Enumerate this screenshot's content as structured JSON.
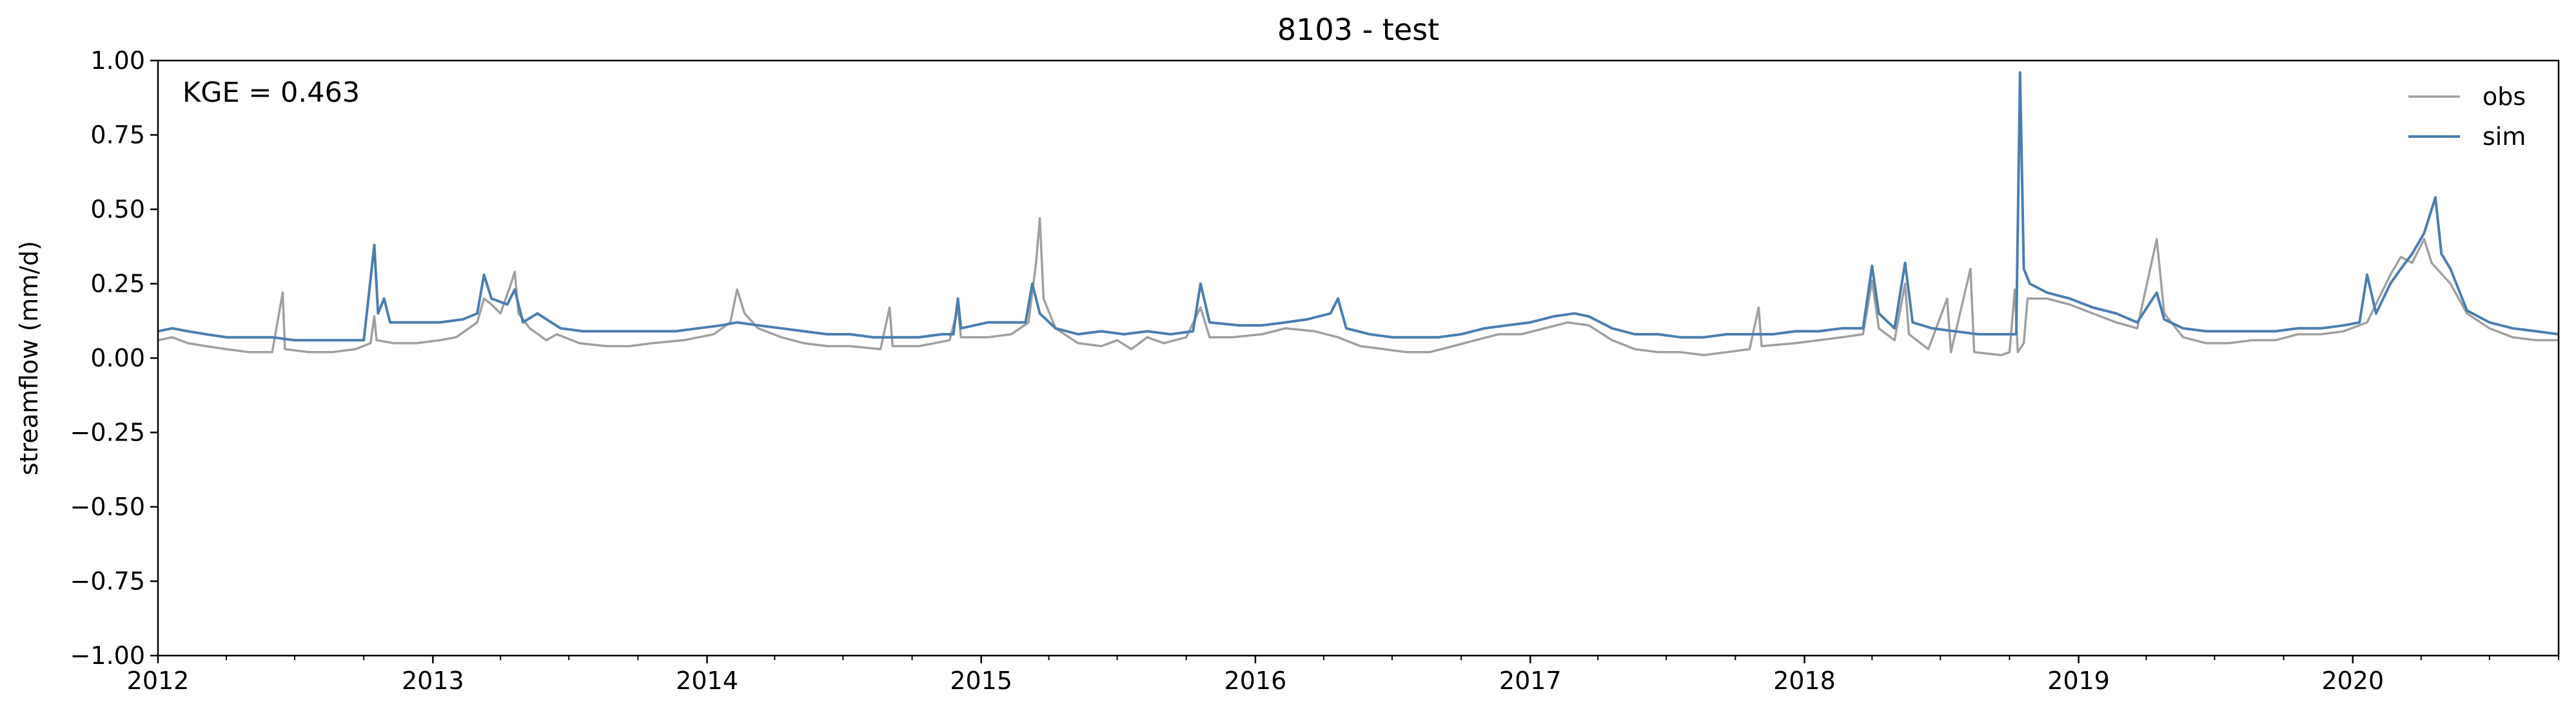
{
  "chart_data": {
    "type": "line",
    "title": "8103 - test",
    "xlabel": "",
    "ylabel": "streamflow (mm/d)",
    "ylim": [
      -1.0,
      1.0
    ],
    "xlim": [
      "2012-01-01",
      "2020-10-01"
    ],
    "x_tick_labels": [
      "2012",
      "2013",
      "2014",
      "2015",
      "2016",
      "2017",
      "2018",
      "2019",
      "2020"
    ],
    "y_ticks": [
      -1.0,
      -0.75,
      -0.5,
      -0.25,
      0.0,
      0.25,
      0.5,
      0.75,
      1.0
    ],
    "y_tick_labels": [
      "−1.00",
      "−0.75",
      "−0.50",
      "−0.25",
      "0.00",
      "0.25",
      "0.50",
      "0.75",
      "1.00"
    ],
    "annotation": "KGE = 0.463",
    "legend_position": "top-right",
    "grid": false,
    "colors": {
      "obs": "#a0a0a0",
      "sim": "#4a7eb0"
    },
    "series": [
      {
        "name": "obs",
        "points": [
          [
            "2012-01-01",
            0.06
          ],
          [
            "2012-01-20",
            0.07
          ],
          [
            "2012-02-10",
            0.05
          ],
          [
            "2012-03-05",
            0.04
          ],
          [
            "2012-04-01",
            0.03
          ],
          [
            "2012-05-01",
            0.02
          ],
          [
            "2012-06-01",
            0.02
          ],
          [
            "2012-06-15",
            0.22
          ],
          [
            "2012-06-18",
            0.03
          ],
          [
            "2012-07-20",
            0.02
          ],
          [
            "2012-08-20",
            0.02
          ],
          [
            "2012-09-20",
            0.03
          ],
          [
            "2012-10-10",
            0.05
          ],
          [
            "2012-10-15",
            0.14
          ],
          [
            "2012-10-18",
            0.06
          ],
          [
            "2012-11-10",
            0.05
          ],
          [
            "2012-12-10",
            0.05
          ],
          [
            "2013-01-10",
            0.06
          ],
          [
            "2013-02-01",
            0.07
          ],
          [
            "2013-03-01",
            0.12
          ],
          [
            "2013-03-10",
            0.2
          ],
          [
            "2013-03-20",
            0.18
          ],
          [
            "2013-04-01",
            0.15
          ],
          [
            "2013-04-15",
            0.25
          ],
          [
            "2013-04-20",
            0.29
          ],
          [
            "2013-04-25",
            0.15
          ],
          [
            "2013-05-10",
            0.1
          ],
          [
            "2013-06-01",
            0.06
          ],
          [
            "2013-06-15",
            0.08
          ],
          [
            "2013-07-15",
            0.05
          ],
          [
            "2013-08-20",
            0.04
          ],
          [
            "2013-09-20",
            0.04
          ],
          [
            "2013-10-20",
            0.05
          ],
          [
            "2013-12-01",
            0.06
          ],
          [
            "2014-01-10",
            0.08
          ],
          [
            "2014-02-01",
            0.12
          ],
          [
            "2014-02-10",
            0.23
          ],
          [
            "2014-02-20",
            0.15
          ],
          [
            "2014-03-10",
            0.1
          ],
          [
            "2014-04-10",
            0.07
          ],
          [
            "2014-05-10",
            0.05
          ],
          [
            "2014-06-10",
            0.04
          ],
          [
            "2014-07-10",
            0.04
          ],
          [
            "2014-08-20",
            0.03
          ],
          [
            "2014-09-01",
            0.17
          ],
          [
            "2014-09-05",
            0.04
          ],
          [
            "2014-10-10",
            0.04
          ],
          [
            "2014-11-20",
            0.06
          ],
          [
            "2014-12-01",
            0.17
          ],
          [
            "2014-12-05",
            0.07
          ],
          [
            "2015-01-10",
            0.07
          ],
          [
            "2015-02-10",
            0.08
          ],
          [
            "2015-03-05",
            0.12
          ],
          [
            "2015-03-15",
            0.32
          ],
          [
            "2015-03-20",
            0.47
          ],
          [
            "2015-03-25",
            0.2
          ],
          [
            "2015-04-10",
            0.1
          ],
          [
            "2015-05-10",
            0.05
          ],
          [
            "2015-06-10",
            0.04
          ],
          [
            "2015-07-01",
            0.06
          ],
          [
            "2015-07-20",
            0.03
          ],
          [
            "2015-08-10",
            0.07
          ],
          [
            "2015-09-01",
            0.05
          ],
          [
            "2015-10-01",
            0.07
          ],
          [
            "2015-10-20",
            0.17
          ],
          [
            "2015-11-01",
            0.07
          ],
          [
            "2015-12-01",
            0.07
          ],
          [
            "2016-01-10",
            0.08
          ],
          [
            "2016-02-10",
            0.1
          ],
          [
            "2016-03-20",
            0.09
          ],
          [
            "2016-04-20",
            0.07
          ],
          [
            "2016-05-20",
            0.04
          ],
          [
            "2016-06-20",
            0.03
          ],
          [
            "2016-07-20",
            0.02
          ],
          [
            "2016-08-20",
            0.02
          ],
          [
            "2016-09-20",
            0.04
          ],
          [
            "2016-10-20",
            0.06
          ],
          [
            "2016-11-20",
            0.08
          ],
          [
            "2016-12-20",
            0.08
          ],
          [
            "2017-01-20",
            0.1
          ],
          [
            "2017-02-20",
            0.12
          ],
          [
            "2017-03-20",
            0.11
          ],
          [
            "2017-04-20",
            0.06
          ],
          [
            "2017-05-20",
            0.03
          ],
          [
            "2017-06-20",
            0.02
          ],
          [
            "2017-07-20",
            0.02
          ],
          [
            "2017-08-20",
            0.01
          ],
          [
            "2017-09-20",
            0.02
          ],
          [
            "2017-10-20",
            0.03
          ],
          [
            "2017-11-01",
            0.17
          ],
          [
            "2017-11-05",
            0.04
          ],
          [
            "2017-12-20",
            0.05
          ],
          [
            "2018-01-20",
            0.06
          ],
          [
            "2018-02-20",
            0.07
          ],
          [
            "2018-03-20",
            0.08
          ],
          [
            "2018-04-01",
            0.26
          ],
          [
            "2018-04-10",
            0.1
          ],
          [
            "2018-05-01",
            0.06
          ],
          [
            "2018-05-15",
            0.25
          ],
          [
            "2018-05-20",
            0.08
          ],
          [
            "2018-06-15",
            0.03
          ],
          [
            "2018-07-10",
            0.2
          ],
          [
            "2018-07-15",
            0.02
          ],
          [
            "2018-08-10",
            0.3
          ],
          [
            "2018-08-15",
            0.02
          ],
          [
            "2018-09-20",
            0.01
          ],
          [
            "2018-10-01",
            0.02
          ],
          [
            "2018-10-08",
            0.23
          ],
          [
            "2018-10-12",
            0.02
          ],
          [
            "2018-10-20",
            0.05
          ],
          [
            "2018-10-25",
            0.2
          ],
          [
            "2018-11-20",
            0.2
          ],
          [
            "2018-12-20",
            0.18
          ],
          [
            "2019-01-20",
            0.15
          ],
          [
            "2019-02-20",
            0.12
          ],
          [
            "2019-03-20",
            0.1
          ],
          [
            "2019-04-15",
            0.4
          ],
          [
            "2019-04-25",
            0.15
          ],
          [
            "2019-05-20",
            0.07
          ],
          [
            "2019-06-20",
            0.05
          ],
          [
            "2019-07-20",
            0.05
          ],
          [
            "2019-08-20",
            0.06
          ],
          [
            "2019-09-20",
            0.06
          ],
          [
            "2019-10-20",
            0.08
          ],
          [
            "2019-11-20",
            0.08
          ],
          [
            "2019-12-20",
            0.09
          ],
          [
            "2020-01-20",
            0.12
          ],
          [
            "2020-02-20",
            0.28
          ],
          [
            "2020-03-05",
            0.34
          ],
          [
            "2020-03-20",
            0.32
          ],
          [
            "2020-04-05",
            0.4
          ],
          [
            "2020-04-15",
            0.32
          ],
          [
            "2020-05-10",
            0.25
          ],
          [
            "2020-06-01",
            0.15
          ],
          [
            "2020-07-01",
            0.1
          ],
          [
            "2020-08-01",
            0.07
          ],
          [
            "2020-09-01",
            0.06
          ],
          [
            "2020-10-01",
            0.06
          ]
        ]
      },
      {
        "name": "sim",
        "points": [
          [
            "2012-01-01",
            0.09
          ],
          [
            "2012-01-20",
            0.1
          ],
          [
            "2012-02-10",
            0.09
          ],
          [
            "2012-03-05",
            0.08
          ],
          [
            "2012-04-01",
            0.07
          ],
          [
            "2012-05-01",
            0.07
          ],
          [
            "2012-06-01",
            0.07
          ],
          [
            "2012-07-01",
            0.06
          ],
          [
            "2012-08-01",
            0.06
          ],
          [
            "2012-09-01",
            0.06
          ],
          [
            "2012-10-01",
            0.06
          ],
          [
            "2012-10-15",
            0.38
          ],
          [
            "2012-10-20",
            0.15
          ],
          [
            "2012-10-28",
            0.2
          ],
          [
            "2012-11-05",
            0.12
          ],
          [
            "2012-12-10",
            0.12
          ],
          [
            "2013-01-10",
            0.12
          ],
          [
            "2013-02-10",
            0.13
          ],
          [
            "2013-03-01",
            0.15
          ],
          [
            "2013-03-10",
            0.28
          ],
          [
            "2013-03-20",
            0.2
          ],
          [
            "2013-04-10",
            0.18
          ],
          [
            "2013-04-20",
            0.23
          ],
          [
            "2013-05-01",
            0.12
          ],
          [
            "2013-05-20",
            0.15
          ],
          [
            "2013-06-20",
            0.1
          ],
          [
            "2013-07-20",
            0.09
          ],
          [
            "2013-08-20",
            0.09
          ],
          [
            "2013-09-20",
            0.09
          ],
          [
            "2013-10-20",
            0.09
          ],
          [
            "2013-11-20",
            0.09
          ],
          [
            "2013-12-20",
            0.1
          ],
          [
            "2014-01-20",
            0.11
          ],
          [
            "2014-02-10",
            0.12
          ],
          [
            "2014-03-10",
            0.11
          ],
          [
            "2014-04-10",
            0.1
          ],
          [
            "2014-05-10",
            0.09
          ],
          [
            "2014-06-10",
            0.08
          ],
          [
            "2014-07-10",
            0.08
          ],
          [
            "2014-08-10",
            0.07
          ],
          [
            "2014-09-10",
            0.07
          ],
          [
            "2014-10-10",
            0.07
          ],
          [
            "2014-11-10",
            0.08
          ],
          [
            "2014-11-25",
            0.08
          ],
          [
            "2014-12-01",
            0.2
          ],
          [
            "2014-12-05",
            0.1
          ],
          [
            "2015-01-10",
            0.12
          ],
          [
            "2015-02-10",
            0.12
          ],
          [
            "2015-03-01",
            0.12
          ],
          [
            "2015-03-10",
            0.25
          ],
          [
            "2015-03-20",
            0.15
          ],
          [
            "2015-04-10",
            0.1
          ],
          [
            "2015-05-10",
            0.08
          ],
          [
            "2015-06-10",
            0.09
          ],
          [
            "2015-07-10",
            0.08
          ],
          [
            "2015-08-10",
            0.09
          ],
          [
            "2015-09-10",
            0.08
          ],
          [
            "2015-10-10",
            0.09
          ],
          [
            "2015-10-20",
            0.25
          ],
          [
            "2015-11-01",
            0.12
          ],
          [
            "2015-12-10",
            0.11
          ],
          [
            "2016-01-10",
            0.11
          ],
          [
            "2016-02-10",
            0.12
          ],
          [
            "2016-03-10",
            0.13
          ],
          [
            "2016-04-10",
            0.15
          ],
          [
            "2016-04-20",
            0.2
          ],
          [
            "2016-05-01",
            0.1
          ],
          [
            "2016-06-01",
            0.08
          ],
          [
            "2016-07-01",
            0.07
          ],
          [
            "2016-08-01",
            0.07
          ],
          [
            "2016-09-01",
            0.07
          ],
          [
            "2016-10-01",
            0.08
          ],
          [
            "2016-11-01",
            0.1
          ],
          [
            "2016-12-01",
            0.11
          ],
          [
            "2017-01-01",
            0.12
          ],
          [
            "2017-02-01",
            0.14
          ],
          [
            "2017-03-01",
            0.15
          ],
          [
            "2017-03-20",
            0.14
          ],
          [
            "2017-04-20",
            0.1
          ],
          [
            "2017-05-20",
            0.08
          ],
          [
            "2017-06-20",
            0.08
          ],
          [
            "2017-07-20",
            0.07
          ],
          [
            "2017-08-20",
            0.07
          ],
          [
            "2017-09-20",
            0.08
          ],
          [
            "2017-10-20",
            0.08
          ],
          [
            "2017-11-20",
            0.08
          ],
          [
            "2017-12-20",
            0.09
          ],
          [
            "2018-01-20",
            0.09
          ],
          [
            "2018-02-20",
            0.1
          ],
          [
            "2018-03-20",
            0.1
          ],
          [
            "2018-04-01",
            0.31
          ],
          [
            "2018-04-10",
            0.15
          ],
          [
            "2018-05-01",
            0.1
          ],
          [
            "2018-05-15",
            0.32
          ],
          [
            "2018-05-25",
            0.12
          ],
          [
            "2018-06-20",
            0.1
          ],
          [
            "2018-07-20",
            0.09
          ],
          [
            "2018-08-20",
            0.08
          ],
          [
            "2018-09-20",
            0.08
          ],
          [
            "2018-10-10",
            0.08
          ],
          [
            "2018-10-15",
            0.96
          ],
          [
            "2018-10-20",
            0.3
          ],
          [
            "2018-10-28",
            0.25
          ],
          [
            "2018-11-20",
            0.22
          ],
          [
            "2018-12-20",
            0.2
          ],
          [
            "2019-01-20",
            0.17
          ],
          [
            "2019-02-20",
            0.15
          ],
          [
            "2019-03-20",
            0.12
          ],
          [
            "2019-04-15",
            0.22
          ],
          [
            "2019-04-25",
            0.13
          ],
          [
            "2019-05-20",
            0.1
          ],
          [
            "2019-06-20",
            0.09
          ],
          [
            "2019-07-20",
            0.09
          ],
          [
            "2019-08-20",
            0.09
          ],
          [
            "2019-09-20",
            0.09
          ],
          [
            "2019-10-20",
            0.1
          ],
          [
            "2019-11-20",
            0.1
          ],
          [
            "2019-12-20",
            0.11
          ],
          [
            "2020-01-10",
            0.12
          ],
          [
            "2020-01-20",
            0.28
          ],
          [
            "2020-02-01",
            0.15
          ],
          [
            "2020-02-20",
            0.25
          ],
          [
            "2020-03-05",
            0.3
          ],
          [
            "2020-03-20",
            0.35
          ],
          [
            "2020-04-05",
            0.42
          ],
          [
            "2020-04-20",
            0.54
          ],
          [
            "2020-04-28",
            0.35
          ],
          [
            "2020-05-10",
            0.3
          ],
          [
            "2020-06-01",
            0.16
          ],
          [
            "2020-07-01",
            0.12
          ],
          [
            "2020-08-01",
            0.1
          ],
          [
            "2020-09-01",
            0.09
          ],
          [
            "2020-10-01",
            0.08
          ]
        ]
      }
    ]
  }
}
